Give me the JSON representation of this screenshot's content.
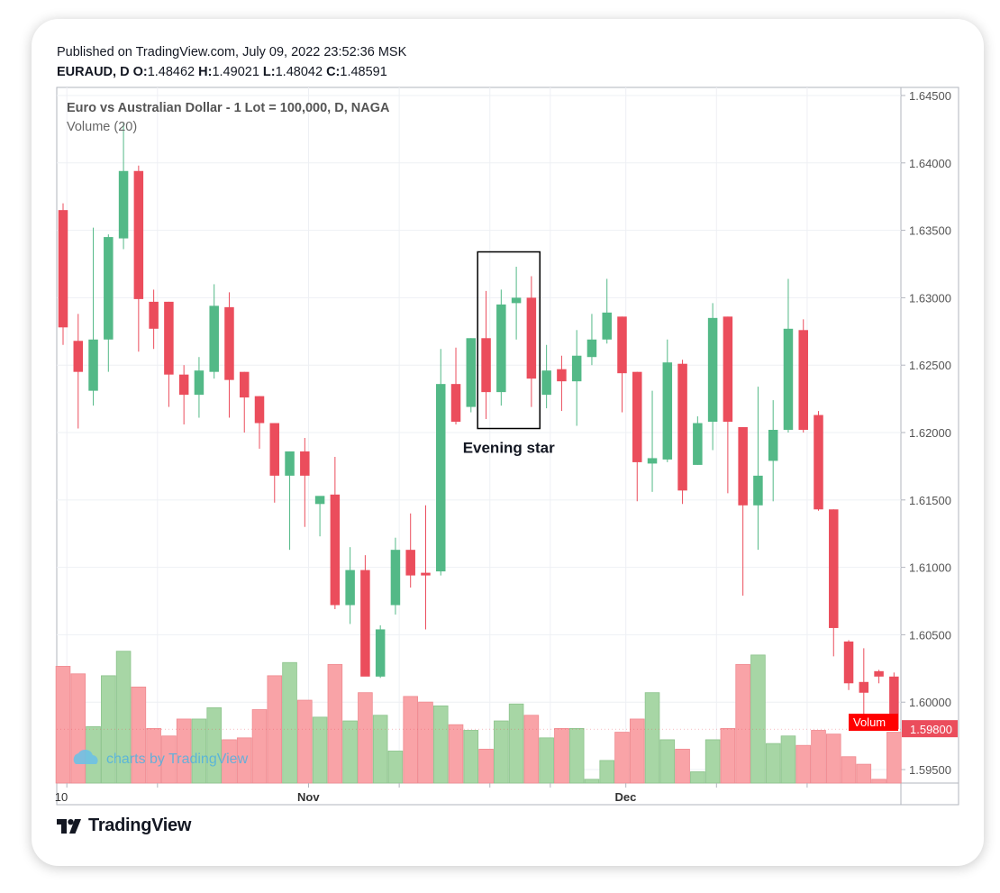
{
  "header": {
    "published": "Published on TradingView.com, July 09, 2022 23:52:36 MSK",
    "symbol": "EURAUD, D",
    "o_label": "O:",
    "o_value": "1.48462",
    "h_label": "H:",
    "h_value": "1.49021",
    "l_label": "L:",
    "l_value": "1.48042",
    "c_label": "C:",
    "c_value": "1.48591"
  },
  "footer": {
    "brand": "TradingView"
  },
  "colors": {
    "up": "#53b987",
    "down": "#eb4d5c",
    "vol_up": "#a7d6a5",
    "vol_down": "#f9a3a7",
    "price_tag": "#eb4d5c",
    "volume_tag": "#ff0000"
  },
  "chart_data": {
    "type": "candlestick",
    "title": "Euro vs Australian Dollar - 1 Lot = 100,000, D, NAGA",
    "indicator": "Volume (20)",
    "ylim": [
      1.594,
      1.6456
    ],
    "yticks": [
      "1.64500",
      "1.64000",
      "1.63500",
      "1.63000",
      "1.62500",
      "1.62000",
      "1.61500",
      "1.61000",
      "1.60500",
      "1.60000",
      "1.59500"
    ],
    "x_labels": [
      {
        "label": "10",
        "bar": 0
      },
      {
        "label": "Nov",
        "bar": 16
      },
      {
        "label": "Dec",
        "bar": 37
      }
    ],
    "last_price_label": "1.59800",
    "volume_label": "Volum",
    "watermark": "charts by TradingView",
    "annotation": {
      "label": "Evening star",
      "bars": [
        28,
        31
      ],
      "y_top": 1.6334,
      "y_bottom": 1.6203
    },
    "candles": [
      {
        "o": 1.6365,
        "h": 1.637,
        "l": 1.6265,
        "c": 1.6278,
        "v": 0.62
      },
      {
        "o": 1.6268,
        "h": 1.6288,
        "l": 1.6203,
        "c": 1.6245,
        "v": 0.58
      },
      {
        "o": 1.6231,
        "h": 1.6352,
        "l": 1.622,
        "c": 1.6269,
        "v": 0.3
      },
      {
        "o": 1.6269,
        "h": 1.6347,
        "l": 1.6245,
        "c": 1.6345,
        "v": 0.57
      },
      {
        "o": 1.6344,
        "h": 1.643,
        "l": 1.6336,
        "c": 1.6394,
        "v": 0.7
      },
      {
        "o": 1.6394,
        "h": 1.6398,
        "l": 1.626,
        "c": 1.6299,
        "v": 0.51
      },
      {
        "o": 1.6297,
        "h": 1.6306,
        "l": 1.6262,
        "c": 1.6277,
        "v": 0.29
      },
      {
        "o": 1.6297,
        "h": 1.6297,
        "l": 1.6219,
        "c": 1.6243,
        "v": 0.25
      },
      {
        "o": 1.6243,
        "h": 1.625,
        "l": 1.6206,
        "c": 1.6228,
        "v": 0.34
      },
      {
        "o": 1.6228,
        "h": 1.6256,
        "l": 1.6211,
        "c": 1.6246,
        "v": 0.34
      },
      {
        "o": 1.6245,
        "h": 1.631,
        "l": 1.624,
        "c": 1.6294,
        "v": 0.4
      },
      {
        "o": 1.6293,
        "h": 1.6304,
        "l": 1.6211,
        "c": 1.6239,
        "v": 0.23
      },
      {
        "o": 1.6245,
        "h": 1.6245,
        "l": 1.62,
        "c": 1.6226,
        "v": 0.24
      },
      {
        "o": 1.6227,
        "h": 1.6227,
        "l": 1.6188,
        "c": 1.6207,
        "v": 0.39
      },
      {
        "o": 1.6207,
        "h": 1.6207,
        "l": 1.6148,
        "c": 1.6168,
        "v": 0.57
      },
      {
        "o": 1.6168,
        "h": 1.6186,
        "l": 1.6113,
        "c": 1.6186,
        "v": 0.64
      },
      {
        "o": 1.6186,
        "h": 1.6196,
        "l": 1.613,
        "c": 1.6168,
        "v": 0.44
      },
      {
        "o": 1.6147,
        "h": 1.6152,
        "l": 1.6123,
        "c": 1.6153,
        "v": 0.35
      },
      {
        "o": 1.6154,
        "h": 1.6182,
        "l": 1.6069,
        "c": 1.6072,
        "v": 0.63
      },
      {
        "o": 1.6072,
        "h": 1.6115,
        "l": 1.6058,
        "c": 1.6098,
        "v": 0.33
      },
      {
        "o": 1.6098,
        "h": 1.6109,
        "l": 1.602,
        "c": 1.6019,
        "v": 0.48
      },
      {
        "o": 1.6019,
        "h": 1.6057,
        "l": 1.6018,
        "c": 1.6054,
        "v": 0.36
      },
      {
        "o": 1.6072,
        "h": 1.6122,
        "l": 1.6065,
        "c": 1.6113,
        "v": 0.17
      },
      {
        "o": 1.6113,
        "h": 1.614,
        "l": 1.6085,
        "c": 1.6094,
        "v": 0.46
      },
      {
        "o": 1.6096,
        "h": 1.6146,
        "l": 1.6054,
        "c": 1.6094,
        "v": 0.43
      },
      {
        "o": 1.6097,
        "h": 1.6262,
        "l": 1.6094,
        "c": 1.6236,
        "v": 0.41
      },
      {
        "o": 1.6236,
        "h": 1.6263,
        "l": 1.6206,
        "c": 1.6208,
        "v": 0.31
      },
      {
        "o": 1.6219,
        "h": 1.627,
        "l": 1.6215,
        "c": 1.627,
        "v": 0.28
      },
      {
        "o": 1.627,
        "h": 1.6305,
        "l": 1.621,
        "c": 1.623,
        "v": 0.18
      },
      {
        "o": 1.623,
        "h": 1.6306,
        "l": 1.622,
        "c": 1.6295,
        "v": 0.33
      },
      {
        "o": 1.6296,
        "h": 1.6323,
        "l": 1.6269,
        "c": 1.63,
        "v": 0.42
      },
      {
        "o": 1.63,
        "h": 1.6316,
        "l": 1.6219,
        "c": 1.624,
        "v": 0.36
      },
      {
        "o": 1.6228,
        "h": 1.6265,
        "l": 1.6218,
        "c": 1.6246,
        "v": 0.24
      },
      {
        "o": 1.6247,
        "h": 1.6257,
        "l": 1.6216,
        "c": 1.6238,
        "v": 0.29
      },
      {
        "o": 1.6238,
        "h": 1.6276,
        "l": 1.6205,
        "c": 1.6257,
        "v": 0.29
      },
      {
        "o": 1.6256,
        "h": 1.6288,
        "l": 1.625,
        "c": 1.6269,
        "v": 0.02
      },
      {
        "o": 1.6269,
        "h": 1.6314,
        "l": 1.6266,
        "c": 1.6289,
        "v": 0.12
      },
      {
        "o": 1.6286,
        "h": 1.6286,
        "l": 1.6215,
        "c": 1.6244,
        "v": 0.27
      },
      {
        "o": 1.6245,
        "h": 1.6245,
        "l": 1.6149,
        "c": 1.6178,
        "v": 0.34
      },
      {
        "o": 1.6177,
        "h": 1.6231,
        "l": 1.6156,
        "c": 1.6181,
        "v": 0.48
      },
      {
        "o": 1.618,
        "h": 1.6269,
        "l": 1.6178,
        "c": 1.6252,
        "v": 0.23
      },
      {
        "o": 1.6251,
        "h": 1.6254,
        "l": 1.6147,
        "c": 1.6157,
        "v": 0.18
      },
      {
        "o": 1.6176,
        "h": 1.6212,
        "l": 1.6176,
        "c": 1.6207,
        "v": 0.06
      },
      {
        "o": 1.6208,
        "h": 1.6296,
        "l": 1.6187,
        "c": 1.6285,
        "v": 0.23
      },
      {
        "o": 1.6286,
        "h": 1.6286,
        "l": 1.6155,
        "c": 1.6208,
        "v": 0.29
      },
      {
        "o": 1.6204,
        "h": 1.6204,
        "l": 1.6079,
        "c": 1.6146,
        "v": 0.63
      },
      {
        "o": 1.6146,
        "h": 1.6234,
        "l": 1.6113,
        "c": 1.6168,
        "v": 0.68
      },
      {
        "o": 1.6179,
        "h": 1.6224,
        "l": 1.6149,
        "c": 1.6202,
        "v": 0.21
      },
      {
        "o": 1.6202,
        "h": 1.6314,
        "l": 1.62,
        "c": 1.6277,
        "v": 0.25
      },
      {
        "o": 1.6276,
        "h": 1.6284,
        "l": 1.62,
        "c": 1.6202,
        "v": 0.2
      },
      {
        "o": 1.6213,
        "h": 1.6216,
        "l": 1.6142,
        "c": 1.6143,
        "v": 0.28
      },
      {
        "o": 1.6143,
        "h": 1.6143,
        "l": 1.6034,
        "c": 1.6055,
        "v": 0.26
      },
      {
        "o": 1.6045,
        "h": 1.6046,
        "l": 1.6009,
        "c": 1.6014,
        "v": 0.14
      },
      {
        "o": 1.6015,
        "h": 1.604,
        "l": 1.599,
        "c": 1.6007,
        "v": 0.1
      },
      {
        "o": 1.6023,
        "h": 1.6024,
        "l": 1.6014,
        "c": 1.6019,
        "v": 0.02
      },
      {
        "o": 1.6019,
        "h": 1.6022,
        "l": 1.598,
        "c": 1.598,
        "v": 0.27
      }
    ]
  }
}
